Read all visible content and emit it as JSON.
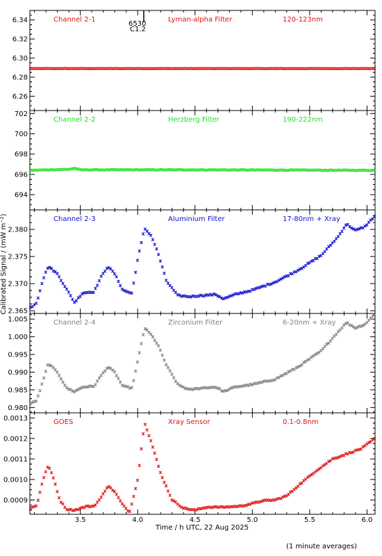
{
  "figure": {
    "ylabel": "Calibrated Signal / (mW m⁻²)",
    "xlabel": "Time / h UTC, 22 Aug 2025",
    "footnote": "(1 minute averages)",
    "x_ticks": [
      "3.5",
      "4.0",
      "4.5",
      "5.0",
      "5.5",
      "6.0"
    ],
    "marker": "6530",
    "marker_sub": "C1.2"
  },
  "chart_data": [
    {
      "type": "scatter",
      "channel": "Channel 2-1",
      "filter": "Lyman-alpha Filter",
      "band": "120-123nm",
      "color": "#dd1111",
      "xlim": [
        3.06,
        6.07
      ],
      "ylim": [
        6.245,
        6.35
      ],
      "y_ticks": [
        "6.26",
        "6.28",
        "6.30",
        "6.32",
        "6.34"
      ],
      "knots": [
        [
          3.06,
          6.289
        ],
        [
          6.07,
          6.289
        ]
      ]
    },
    {
      "type": "scatter",
      "channel": "Channel 2-2",
      "filter": "Herzberg Filter",
      "band": "190-222nm",
      "color": "#22dd22",
      "xlim": [
        3.06,
        6.07
      ],
      "ylim": [
        692.5,
        702.3
      ],
      "y_ticks": [
        "694",
        "696",
        "698",
        "700",
        "702"
      ],
      "knots": [
        [
          3.06,
          696.4
        ],
        [
          3.4,
          696.5
        ],
        [
          3.45,
          696.6
        ],
        [
          3.5,
          696.45
        ],
        [
          4.5,
          696.45
        ],
        [
          6.07,
          696.4
        ]
      ]
    },
    {
      "type": "scatter",
      "channel": "Channel 2-3",
      "filter": "Aluminium Filter",
      "band": "17-80nm + Xray",
      "color": "#1111cc",
      "xlim": [
        3.06,
        6.07
      ],
      "ylim": [
        2.3645,
        2.3836
      ],
      "y_ticks": [
        "2.365",
        "2.370",
        "2.375",
        "2.380"
      ],
      "knots": [
        [
          3.06,
          2.3655
        ],
        [
          3.12,
          2.3665
        ],
        [
          3.17,
          2.3705
        ],
        [
          3.22,
          2.3732
        ],
        [
          3.3,
          2.3718
        ],
        [
          3.38,
          2.369
        ],
        [
          3.45,
          2.3665
        ],
        [
          3.52,
          2.3683
        ],
        [
          3.62,
          2.3685
        ],
        [
          3.68,
          2.3712
        ],
        [
          3.74,
          2.3732
        ],
        [
          3.8,
          2.3718
        ],
        [
          3.87,
          2.3688
        ],
        [
          3.95,
          2.3682
        ],
        [
          4.0,
          2.3745
        ],
        [
          4.06,
          2.3802
        ],
        [
          4.12,
          2.3788
        ],
        [
          4.18,
          2.3755
        ],
        [
          4.25,
          2.3705
        ],
        [
          4.35,
          2.3678
        ],
        [
          4.45,
          2.3676
        ],
        [
          4.55,
          2.3678
        ],
        [
          4.68,
          2.368
        ],
        [
          4.75,
          2.3672
        ],
        [
          4.85,
          2.368
        ],
        [
          5.0,
          2.3688
        ],
        [
          5.2,
          2.3703
        ],
        [
          5.4,
          2.3725
        ],
        [
          5.6,
          2.3752
        ],
        [
          5.75,
          2.3787
        ],
        [
          5.82,
          2.381
        ],
        [
          5.9,
          2.3798
        ],
        [
          5.98,
          2.3805
        ],
        [
          6.07,
          2.3825
        ]
      ]
    },
    {
      "type": "scatter",
      "channel": "Channel 2-4",
      "filter": "Zirconium Filter",
      "band": "6-20nm + Xray",
      "color": "#808080",
      "xlim": [
        3.06,
        6.07
      ],
      "ylim": [
        0.9785,
        1.0066
      ],
      "y_ticks": [
        "0.980",
        "0.985",
        "0.990",
        "0.995",
        "1.000",
        "1.005"
      ],
      "knots": [
        [
          3.06,
          0.981
        ],
        [
          3.12,
          0.982
        ],
        [
          3.17,
          0.987
        ],
        [
          3.22,
          0.9925
        ],
        [
          3.3,
          0.99
        ],
        [
          3.38,
          0.9855
        ],
        [
          3.45,
          0.9845
        ],
        [
          3.52,
          0.9858
        ],
        [
          3.62,
          0.986
        ],
        [
          3.68,
          0.989
        ],
        [
          3.74,
          0.9915
        ],
        [
          3.8,
          0.99
        ],
        [
          3.87,
          0.986
        ],
        [
          3.95,
          0.9855
        ],
        [
          4.0,
          0.993
        ],
        [
          4.06,
          1.0025
        ],
        [
          4.12,
          1.0005
        ],
        [
          4.18,
          0.9975
        ],
        [
          4.25,
          0.992
        ],
        [
          4.35,
          0.9865
        ],
        [
          4.45,
          0.985
        ],
        [
          4.55,
          0.9855
        ],
        [
          4.68,
          0.9858
        ],
        [
          4.75,
          0.9845
        ],
        [
          4.85,
          0.9858
        ],
        [
          5.0,
          0.9865
        ],
        [
          5.2,
          0.988
        ],
        [
          5.4,
          0.9915
        ],
        [
          5.6,
          0.996
        ],
        [
          5.75,
          1.0015
        ],
        [
          5.82,
          1.004
        ],
        [
          5.9,
          1.0025
        ],
        [
          5.98,
          1.0035
        ],
        [
          6.07,
          1.0065
        ]
      ]
    },
    {
      "type": "scatter",
      "channel": "GOES",
      "filter": "Xray Sensor",
      "band": "0.1-0.8nm",
      "color": "#dd1111",
      "xlim": [
        3.06,
        6.07
      ],
      "ylim": [
        0.00083,
        0.001325
      ],
      "y_ticks": [
        "0.0009",
        "0.0010",
        "0.0011",
        "0.0012",
        "0.0013"
      ],
      "knots": [
        [
          3.06,
          0.00086
        ],
        [
          3.12,
          0.000872
        ],
        [
          3.17,
          0.00099
        ],
        [
          3.22,
          0.00107
        ],
        [
          3.27,
          0.001
        ],
        [
          3.32,
          0.0009
        ],
        [
          3.38,
          0.000855
        ],
        [
          3.45,
          0.00085
        ],
        [
          3.55,
          0.000868
        ],
        [
          3.62,
          0.00087
        ],
        [
          3.68,
          0.00091
        ],
        [
          3.74,
          0.00097
        ],
        [
          3.8,
          0.00094
        ],
        [
          3.87,
          0.000875
        ],
        [
          3.93,
          0.00084
        ],
        [
          4.0,
          0.001
        ],
        [
          4.06,
          0.00128
        ],
        [
          4.12,
          0.00118
        ],
        [
          4.2,
          0.00103
        ],
        [
          4.3,
          0.0009
        ],
        [
          4.4,
          0.00086
        ],
        [
          4.5,
          0.00085
        ],
        [
          4.6,
          0.000865
        ],
        [
          4.75,
          0.000865
        ],
        [
          4.9,
          0.00087
        ],
        [
          5.02,
          0.000885
        ],
        [
          5.08,
          0.000895
        ],
        [
          5.2,
          0.0009
        ],
        [
          5.3,
          0.00092
        ],
        [
          5.4,
          0.00097
        ],
        [
          5.55,
          0.00104
        ],
        [
          5.7,
          0.0011
        ],
        [
          5.85,
          0.00113
        ],
        [
          5.95,
          0.00115
        ],
        [
          6.07,
          0.0012
        ]
      ]
    }
  ]
}
